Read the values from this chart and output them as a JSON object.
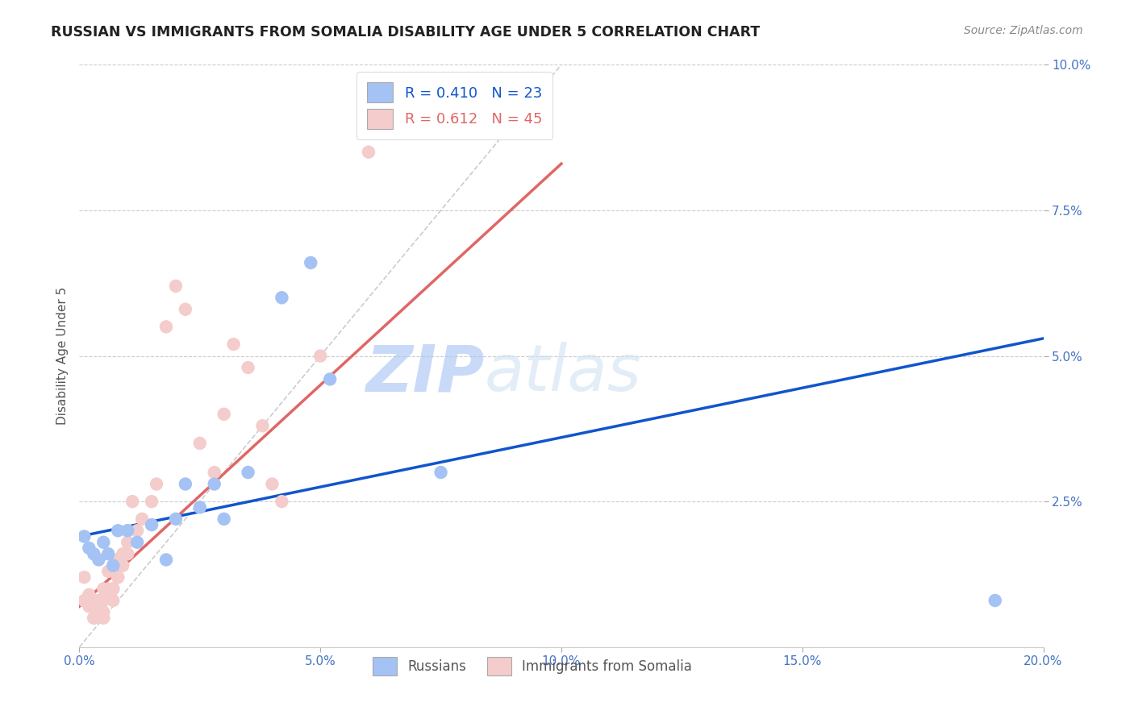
{
  "title": "RUSSIAN VS IMMIGRANTS FROM SOMALIA DISABILITY AGE UNDER 5 CORRELATION CHART",
  "source": "Source: ZipAtlas.com",
  "ylabel": "Disability Age Under 5",
  "xlim": [
    0,
    0.2
  ],
  "ylim": [
    0,
    0.1
  ],
  "russian_R": 0.41,
  "russian_N": 23,
  "somalia_R": 0.612,
  "somalia_N": 45,
  "blue_scatter_color": "#a4c2f4",
  "pink_scatter_color": "#f4cccc",
  "blue_line_color": "#1155cc",
  "pink_line_color": "#e06666",
  "diagonal_color": "#cccccc",
  "watermark": "ZIPatlas",
  "russian_x": [
    0.001,
    0.002,
    0.003,
    0.004,
    0.005,
    0.006,
    0.007,
    0.008,
    0.01,
    0.012,
    0.015,
    0.018,
    0.02,
    0.022,
    0.025,
    0.028,
    0.03,
    0.035,
    0.042,
    0.048,
    0.052,
    0.075,
    0.19
  ],
  "russian_y": [
    0.019,
    0.017,
    0.016,
    0.015,
    0.018,
    0.016,
    0.014,
    0.02,
    0.02,
    0.018,
    0.021,
    0.015,
    0.022,
    0.028,
    0.024,
    0.028,
    0.022,
    0.03,
    0.06,
    0.066,
    0.046,
    0.03,
    0.008
  ],
  "somalia_x": [
    0.001,
    0.001,
    0.002,
    0.002,
    0.003,
    0.003,
    0.003,
    0.004,
    0.004,
    0.004,
    0.005,
    0.005,
    0.005,
    0.005,
    0.006,
    0.006,
    0.007,
    0.007,
    0.007,
    0.008,
    0.008,
    0.008,
    0.009,
    0.009,
    0.01,
    0.01,
    0.01,
    0.011,
    0.012,
    0.013,
    0.015,
    0.016,
    0.018,
    0.02,
    0.022,
    0.025,
    0.028,
    0.03,
    0.032,
    0.035,
    0.038,
    0.04,
    0.042,
    0.05,
    0.06
  ],
  "somalia_y": [
    0.012,
    0.008,
    0.009,
    0.007,
    0.005,
    0.005,
    0.008,
    0.007,
    0.008,
    0.006,
    0.005,
    0.006,
    0.008,
    0.01,
    0.013,
    0.01,
    0.01,
    0.008,
    0.01,
    0.012,
    0.015,
    0.012,
    0.016,
    0.014,
    0.018,
    0.02,
    0.016,
    0.025,
    0.02,
    0.022,
    0.025,
    0.028,
    0.055,
    0.062,
    0.058,
    0.035,
    0.03,
    0.04,
    0.052,
    0.048,
    0.038,
    0.028,
    0.025,
    0.05,
    0.085
  ]
}
